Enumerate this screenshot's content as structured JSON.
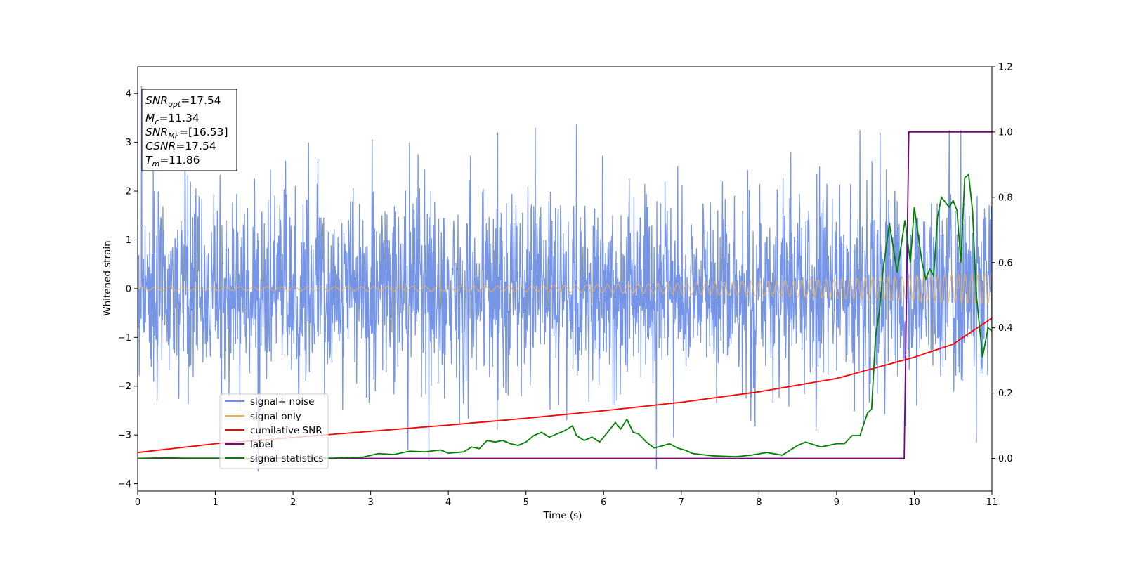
{
  "chart_data": {
    "type": "line",
    "title": "",
    "xlabel": "Time (s)",
    "ylabel": "Whitened strain",
    "xlim": [
      0,
      11
    ],
    "ylim": [
      -4.15,
      4.55
    ],
    "y2lim": [
      -0.1,
      1.2
    ],
    "xticks": [
      "0",
      "1",
      "2",
      "3",
      "4",
      "5",
      "6",
      "7",
      "8",
      "9",
      "10",
      "11"
    ],
    "yticks": [
      "−4",
      "−3",
      "−2",
      "−1",
      "0",
      "1",
      "2",
      "3",
      "4"
    ],
    "y2ticks": [
      "0.0",
      "0.2",
      "0.4",
      "0.6",
      "0.8",
      "1.0",
      "1.2"
    ],
    "grid": false,
    "legend": {
      "placement": "lower-left",
      "entries": [
        {
          "label": "signal+ noise",
          "color": "#6f8fe6"
        },
        {
          "label": "signal only",
          "color": "#f5b04a"
        },
        {
          "label": "cumilative SNR",
          "color": "#ff0000"
        },
        {
          "label": "label",
          "color": "#800080"
        },
        {
          "label": "signal statistics",
          "color": "#008000"
        }
      ]
    },
    "info_box": {
      "lines": [
        {
          "base": "SNR",
          "sub": "opt",
          "value": "=17.54"
        },
        {
          "base": "M",
          "sub": "c",
          "value": "=11.34"
        },
        {
          "base": "SNR",
          "sub": "MF",
          "value": "=[16.53]"
        },
        {
          "base": "CSNR",
          "sub": "",
          "value": "=17.54"
        },
        {
          "base": "T",
          "sub": "m",
          "value": "=11.86"
        }
      ]
    },
    "series": [
      {
        "name": "signal+ noise",
        "axis": "left",
        "color": "#6f8fe6",
        "noise_std": 1.0,
        "sample_rate_hz": 200,
        "peaks": [
          {
            "x": 0.05,
            "y": 4.15
          },
          {
            "x": 0.2,
            "y": 2.6
          },
          {
            "x": 0.25,
            "y": -2.3
          },
          {
            "x": 1.08,
            "y": -2.9
          },
          {
            "x": 1.55,
            "y": -3.75
          },
          {
            "x": 2.2,
            "y": 3.0
          },
          {
            "x": 3.48,
            "y": -3.3
          },
          {
            "x": 3.75,
            "y": -3.45
          },
          {
            "x": 5.12,
            "y": 3.3
          },
          {
            "x": 5.65,
            "y": 3.38
          },
          {
            "x": 6.68,
            "y": -3.7
          },
          {
            "x": 6.9,
            "y": -3.05
          },
          {
            "x": 9.3,
            "y": 3.25
          },
          {
            "x": 10.45,
            "y": 3.25
          },
          {
            "x": 10.6,
            "y": 3.25
          },
          {
            "x": 10.8,
            "y": -3.15
          }
        ]
      },
      {
        "name": "signal only",
        "axis": "left",
        "color": "#f5b04a",
        "amplitude_start": 0.04,
        "amplitude_end": 0.33,
        "freq_start_hz": 5.5,
        "freq_end_hz": 12
      },
      {
        "name": "cumilative SNR",
        "axis": "right",
        "color": "#ff0000",
        "x": [
          0,
          1,
          2,
          3,
          4,
          5,
          6,
          7,
          8,
          9,
          10,
          10.5,
          11
        ],
        "values": [
          0.018,
          0.045,
          0.064,
          0.083,
          0.102,
          0.123,
          0.146,
          0.172,
          0.204,
          0.245,
          0.31,
          0.35,
          0.43
        ]
      },
      {
        "name": "label",
        "axis": "right",
        "color": "#800080",
        "x": [
          0,
          9.87,
          9.93,
          11
        ],
        "values": [
          0,
          0,
          1,
          1
        ]
      },
      {
        "name": "signal statistics",
        "axis": "right",
        "color": "#008000",
        "x": [
          0,
          0.3,
          0.6,
          1,
          1.5,
          2,
          2.5,
          2.9,
          3.1,
          3.3,
          3.5,
          3.7,
          3.9,
          4.0,
          4.2,
          4.3,
          4.4,
          4.5,
          4.6,
          4.7,
          4.8,
          4.9,
          5.0,
          5.1,
          5.2,
          5.3,
          5.4,
          5.5,
          5.6,
          5.65,
          5.75,
          5.85,
          5.95,
          6.05,
          6.15,
          6.22,
          6.3,
          6.38,
          6.45,
          6.55,
          6.65,
          6.75,
          6.85,
          6.95,
          7.05,
          7.15,
          7.4,
          7.7,
          7.9,
          8.1,
          8.3,
          8.5,
          8.6,
          8.8,
          9.0,
          9.1,
          9.2,
          9.3,
          9.4,
          9.45,
          9.5,
          9.55,
          9.6,
          9.68,
          9.78,
          9.88,
          9.95,
          10.0,
          10.1,
          10.15,
          10.2,
          10.25,
          10.3,
          10.35,
          10.45,
          10.5,
          10.55,
          10.6,
          10.65,
          10.7,
          10.75,
          10.8,
          10.88,
          10.95,
          11.0
        ],
        "values": [
          0,
          0.002,
          0.001,
          0.001,
          0.0,
          0.002,
          0.001,
          0.004,
          0.015,
          0.012,
          0.022,
          0.02,
          0.026,
          0.016,
          0.02,
          0.035,
          0.03,
          0.055,
          0.05,
          0.055,
          0.045,
          0.04,
          0.05,
          0.07,
          0.08,
          0.065,
          0.075,
          0.085,
          0.1,
          0.07,
          0.055,
          0.065,
          0.05,
          0.08,
          0.11,
          0.09,
          0.12,
          0.08,
          0.075,
          0.05,
          0.032,
          0.038,
          0.045,
          0.032,
          0.025,
          0.015,
          0.008,
          0.005,
          0.01,
          0.018,
          0.01,
          0.04,
          0.05,
          0.035,
          0.045,
          0.045,
          0.07,
          0.07,
          0.14,
          0.15,
          0.37,
          0.45,
          0.58,
          0.72,
          0.57,
          0.73,
          0.6,
          0.77,
          0.6,
          0.55,
          0.58,
          0.56,
          0.74,
          0.8,
          0.77,
          0.79,
          0.76,
          0.6,
          0.86,
          0.87,
          0.76,
          0.5,
          0.31,
          0.4,
          0.39
        ]
      }
    ]
  }
}
